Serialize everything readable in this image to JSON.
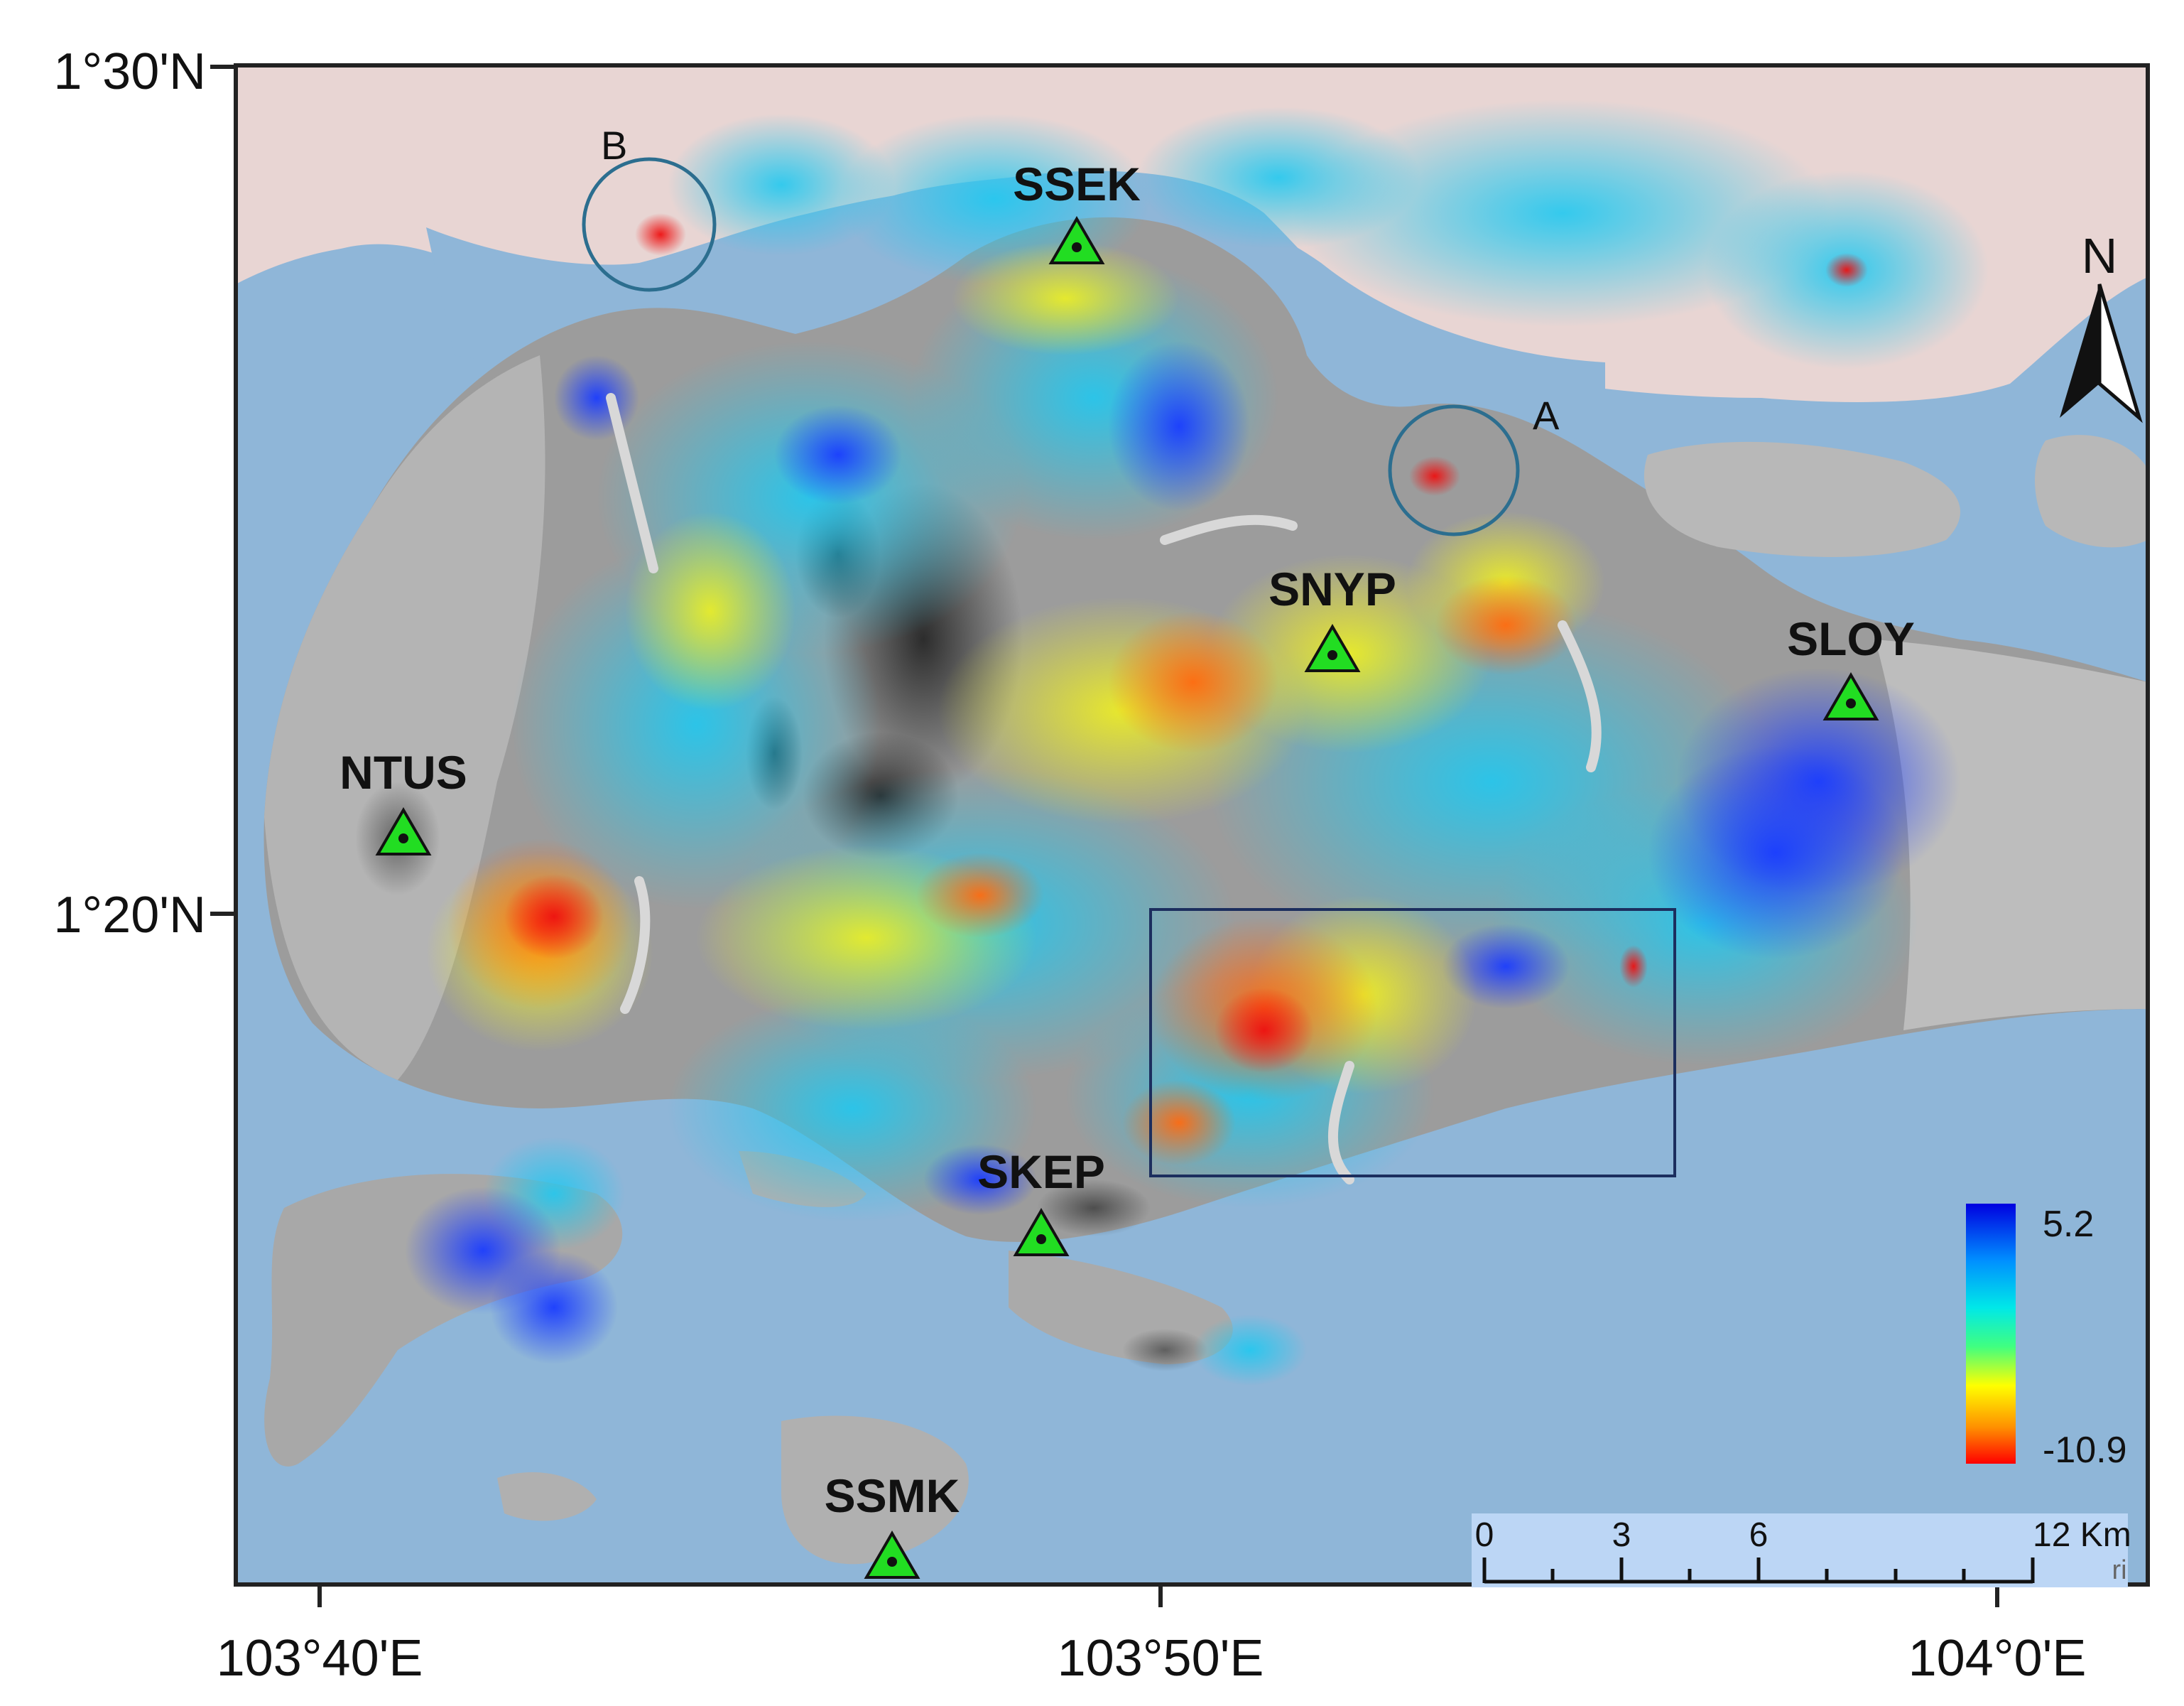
{
  "colors": {
    "sea": "#8fb6d8",
    "land": "#e8d5d3",
    "grey": "#9c9c9c",
    "frame": "#222222",
    "station_fill": "#22dd22",
    "circle": "#2c6e8f",
    "box": "#1c2e5e",
    "scale_bg": "#bcd6f5"
  },
  "map": {
    "lat_labels": [
      "1°30'N",
      "1°20'N"
    ],
    "lon_labels": [
      "103°40'E",
      "103°50'E",
      "104°0'E"
    ],
    "north_label": "N"
  },
  "stations": [
    {
      "name": "SSEK"
    },
    {
      "name": "SNYP"
    },
    {
      "name": "SLOY"
    },
    {
      "name": "NTUS"
    },
    {
      "name": "SKEP"
    },
    {
      "name": "SSMK"
    }
  ],
  "annotations": {
    "a": "A",
    "b": "B"
  },
  "legend": {
    "max": "5.2",
    "min": "-10.9"
  },
  "scalebar": {
    "ticks": [
      "0",
      "3",
      "6",
      "12 Km"
    ],
    "tail": "ri"
  }
}
